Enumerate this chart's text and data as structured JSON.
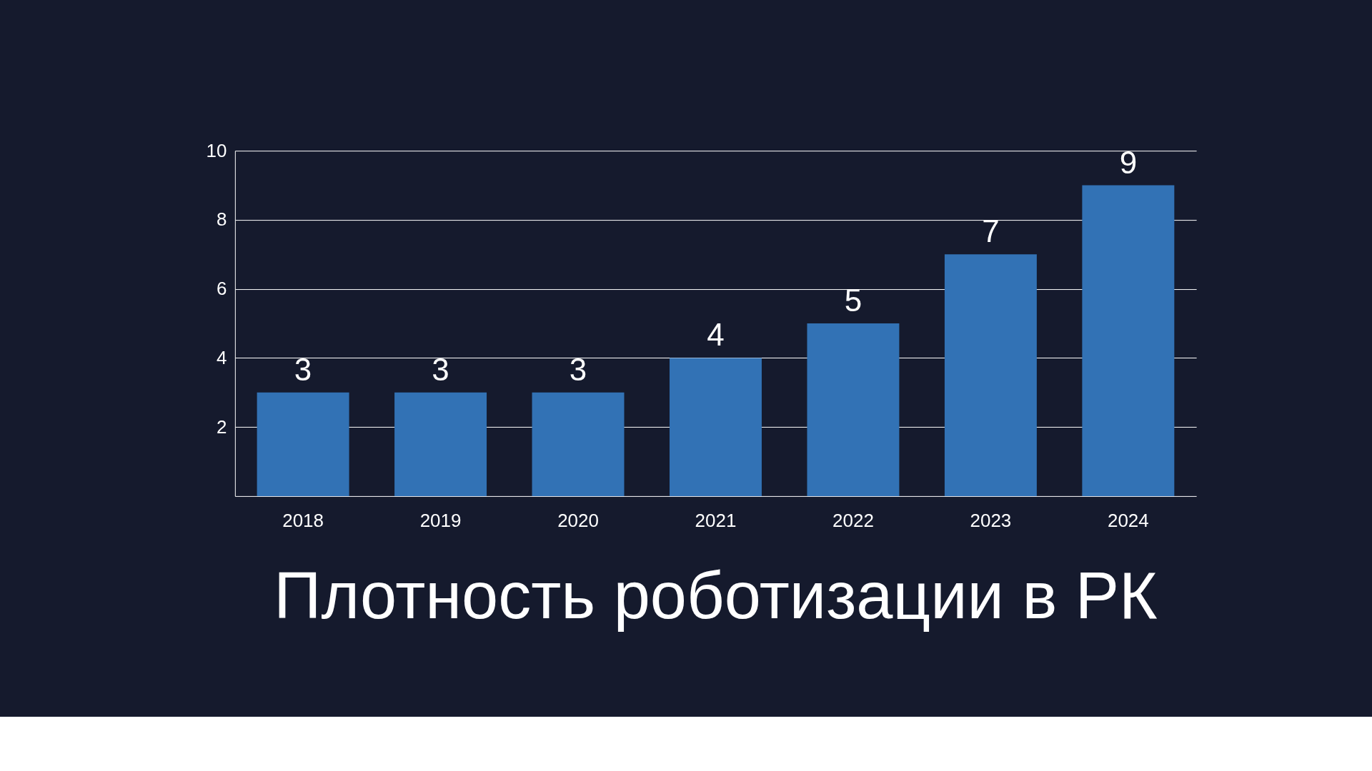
{
  "chart_data": {
    "type": "bar",
    "title": "Плотность роботизации в РК",
    "categories": [
      "2018",
      "2019",
      "2020",
      "2021",
      "2022",
      "2023",
      "2024"
    ],
    "values": [
      3,
      3,
      3,
      4,
      5,
      7,
      9
    ],
    "color": "#3272b5",
    "ylim": [
      0,
      10
    ],
    "yticks": [
      2,
      4,
      6,
      8,
      10
    ],
    "grid": "y",
    "data_labels": true
  }
}
